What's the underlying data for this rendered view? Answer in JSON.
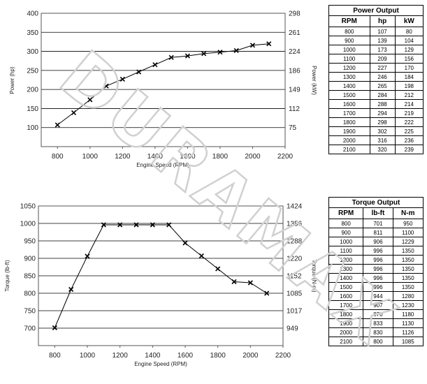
{
  "chart_data": [
    {
      "type": "line",
      "name": "power",
      "xlabel": "Engine Speed (RPM)",
      "ylabel": "Power (hp)",
      "y2label": "Power (kW)",
      "xlim": [
        700,
        2200
      ],
      "xticks": [
        800,
        1000,
        1200,
        1400,
        1600,
        1800,
        2000,
        2200
      ],
      "ylim": [
        50,
        400
      ],
      "yticks": [
        100,
        150,
        200,
        250,
        300,
        350,
        400
      ],
      "y2ticks": [
        "75",
        "112",
        "149",
        "186",
        "224",
        "261",
        "298"
      ],
      "grid": true,
      "x": [
        800,
        900,
        1000,
        1100,
        1200,
        1300,
        1400,
        1500,
        1600,
        1700,
        1800,
        1900,
        2000,
        2100
      ],
      "y": [
        107,
        139,
        173,
        209,
        227,
        246,
        265,
        284,
        288,
        294,
        298,
        302,
        316,
        320
      ]
    },
    {
      "type": "line",
      "name": "torque",
      "xlabel": "Engine Speed (RPM)",
      "ylabel": "Torque (lb-ft)",
      "y2label": "Torque (N-m)",
      "xlim": [
        700,
        2200
      ],
      "xticks": [
        800,
        1000,
        1200,
        1400,
        1600,
        1800,
        2000,
        2200
      ],
      "ylim": [
        650,
        1050
      ],
      "yticks": [
        700,
        750,
        800,
        850,
        900,
        950,
        1000,
        1050
      ],
      "y2ticks": [
        "949",
        "1017",
        "1085",
        "1152",
        "1220",
        "1288",
        "1356",
        "1424"
      ],
      "grid": true,
      "x": [
        800,
        900,
        1000,
        1100,
        1200,
        1300,
        1400,
        1500,
        1600,
        1700,
        1800,
        1900,
        2000,
        2100
      ],
      "y": [
        701,
        811,
        906,
        996,
        996,
        996,
        996,
        996,
        944,
        907,
        870,
        833,
        830,
        800
      ]
    }
  ],
  "power_table": {
    "title": "Power Output",
    "headers": [
      "RPM",
      "hp",
      "kW"
    ],
    "rows": [
      [
        "800",
        "107",
        "80"
      ],
      [
        "900",
        "139",
        "104"
      ],
      [
        "1000",
        "173",
        "129"
      ],
      [
        "1100",
        "209",
        "156"
      ],
      [
        "1200",
        "227",
        "170"
      ],
      [
        "1300",
        "246",
        "184"
      ],
      [
        "1400",
        "265",
        "198"
      ],
      [
        "1500",
        "284",
        "212"
      ],
      [
        "1600",
        "288",
        "214"
      ],
      [
        "1700",
        "294",
        "219"
      ],
      [
        "1800",
        "298",
        "222"
      ],
      [
        "1900",
        "302",
        "225"
      ],
      [
        "2000",
        "316",
        "236"
      ],
      [
        "2100",
        "320",
        "239"
      ]
    ]
  },
  "torque_table": {
    "title": "Torque Output",
    "headers": [
      "RPM",
      "lb-ft",
      "N-m"
    ],
    "rows": [
      [
        "800",
        "701",
        "950"
      ],
      [
        "900",
        "811",
        "1100"
      ],
      [
        "1000",
        "906",
        "1229"
      ],
      [
        "1100",
        "996",
        "1350"
      ],
      [
        "1200",
        "996",
        "1350"
      ],
      [
        "1300",
        "996",
        "1350"
      ],
      [
        "1400",
        "996",
        "1350"
      ],
      [
        "1500",
        "996",
        "1350"
      ],
      [
        "1600",
        "944",
        "1280"
      ],
      [
        "1700",
        "907",
        "1230"
      ],
      [
        "1800",
        "870",
        "1180"
      ],
      [
        "1900",
        "833",
        "1130"
      ],
      [
        "2000",
        "830",
        "1126"
      ],
      [
        "2100",
        "800",
        "1085"
      ]
    ]
  },
  "watermark": "DURAMAX"
}
